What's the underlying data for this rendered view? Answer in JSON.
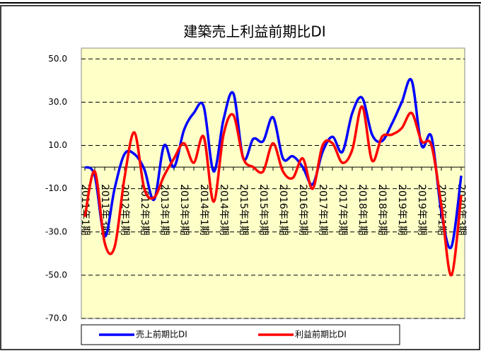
{
  "chart_data": {
    "type": "line",
    "title": "建築売上利益前期比DI",
    "categories": [
      "2011年1期",
      null,
      "2011年3期",
      null,
      "2012年1期",
      null,
      "2012年3期",
      null,
      "2013年1期",
      null,
      "2013年3期",
      null,
      "2014年1期",
      null,
      "2014年3期",
      null,
      "2015年1期",
      null,
      "2015年3期",
      null,
      "2016年1期",
      null,
      "2016年3期",
      null,
      "2017年1期",
      null,
      "2017年3期",
      null,
      "2018年1期",
      null,
      "2018年3期",
      null,
      "2019年1期",
      null,
      "2019年3期",
      null,
      "2020年1期",
      null,
      "2020年3期"
    ],
    "series": [
      {
        "name": "売上前期比DI",
        "color": "#0000ff",
        "values": [
          0,
          -4,
          -32,
          -10,
          6,
          6,
          -1,
          -15,
          10,
          0,
          17,
          25,
          28,
          -2,
          22,
          34,
          4,
          13,
          12,
          23,
          4,
          5,
          0,
          -8,
          7,
          14,
          7,
          25,
          32,
          15,
          12,
          20,
          30,
          40,
          10,
          14,
          -21,
          -37,
          -4
        ]
      },
      {
        "name": "利益前期比DI",
        "color": "#ff0000",
        "values": [
          -23,
          -2,
          -35,
          -37,
          -5,
          16,
          -10,
          -14,
          -4,
          4,
          11,
          2,
          14,
          -16,
          15,
          24,
          4,
          0,
          -2,
          11,
          -2,
          -5,
          4,
          -10,
          10,
          11,
          2,
          8,
          28,
          3,
          14,
          15,
          18,
          25,
          12,
          10,
          -18,
          -50,
          -13
        ]
      }
    ],
    "ylim": [
      -70,
      55
    ],
    "yticks": [
      {
        "value": -70,
        "label": "-70.0"
      },
      {
        "value": -50,
        "label": "-50.0"
      },
      {
        "value": -30,
        "label": "-30.0"
      },
      {
        "value": -10,
        "label": "-10.0"
      },
      {
        "value": 10,
        "label": "10.0"
      },
      {
        "value": 30,
        "label": "30.0"
      },
      {
        "value": 50,
        "label": "50.0"
      }
    ],
    "grid": true,
    "legend": "bottom"
  }
}
